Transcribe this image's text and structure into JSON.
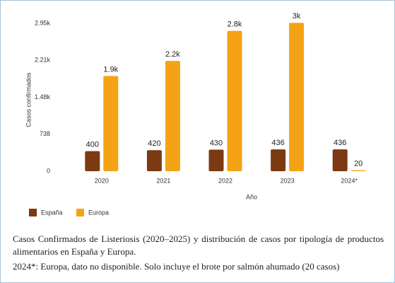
{
  "chart_data": {
    "type": "bar",
    "categories": [
      "2020",
      "2021",
      "2022",
      "2023",
      "2024*"
    ],
    "series": [
      {
        "name": "España",
        "color": "#7b3a12",
        "values": [
          400,
          420,
          430,
          436,
          436
        ]
      },
      {
        "name": "Europa",
        "color": "#f5a316",
        "values": [
          1900,
          2200,
          2800,
          2960,
          20
        ],
        "value_labels": [
          "1.9k",
          "2.2k",
          "2.8k",
          "3k",
          "20"
        ]
      }
    ],
    "ylim": [
      0,
      2950
    ],
    "yticks": [
      0,
      738,
      {
        "value": 1475,
        "label": "1.48k"
      },
      {
        "value": 2213,
        "label": "2.21k"
      },
      {
        "value": 2950,
        "label": "2.95k"
      }
    ],
    "ylabel": "Casos confirmados",
    "xlabel": "Año",
    "grid": false,
    "legend": "bottom-left"
  },
  "caption": {
    "text": "Casos Confirmados de Listeriosis (2020–2025) y distribución de casos por tipología de productos alimentarios en España y Europa.",
    "note": "2024*: Europa, dato no disponible. Solo incluye el brote por salmón ahumado (20 casos)"
  }
}
